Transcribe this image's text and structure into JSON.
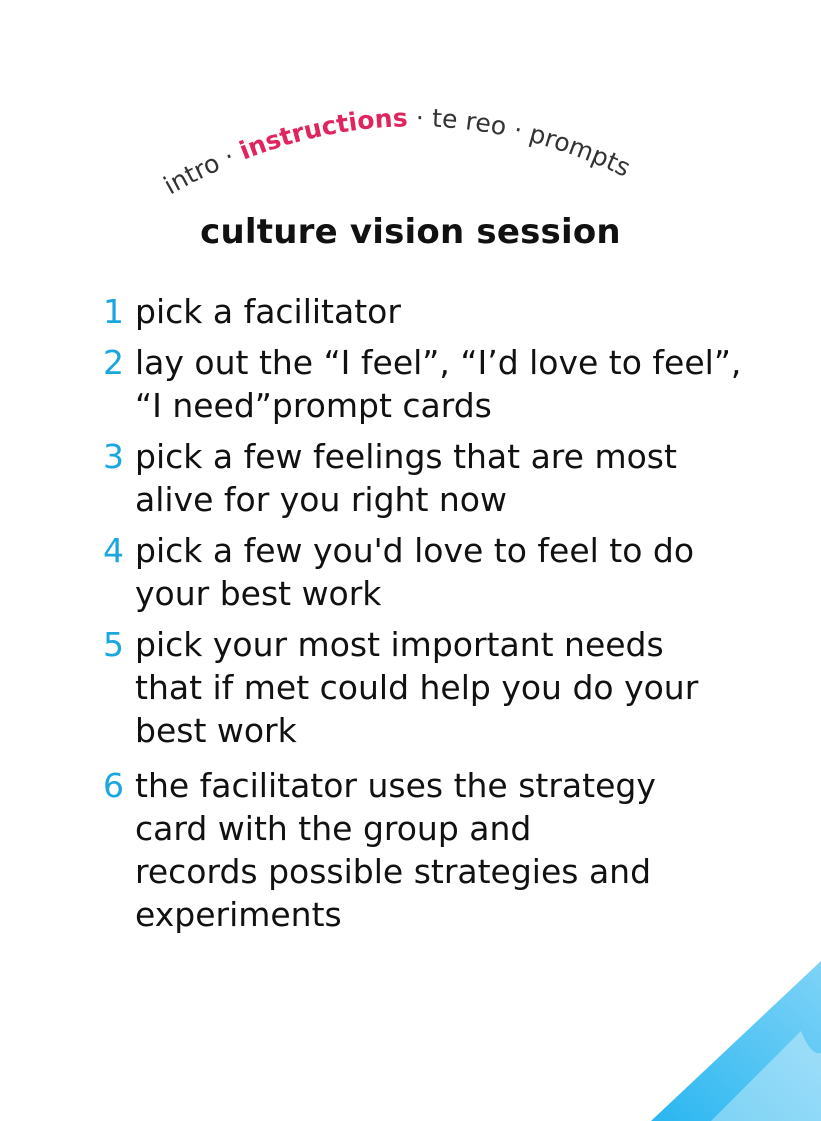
{
  "nav": {
    "items": [
      {
        "label": "intro",
        "active": false
      },
      {
        "label": "instructions",
        "active": true
      },
      {
        "label": "te reo",
        "active": false
      },
      {
        "label": "prompts",
        "active": false
      }
    ],
    "separator": "·"
  },
  "title": "culture vision session",
  "steps": [
    {
      "number": "1",
      "text": "pick a facilitator"
    },
    {
      "number": "2",
      "text": "lay out the “I feel”, “I’d love to feel”,\n“I need”prompt cards"
    },
    {
      "number": "3",
      "text": "pick a few feelings that are most\nalive for you right now"
    },
    {
      "number": "4",
      "text": "pick a few you'd love to feel to do\nyour best work"
    },
    {
      "number": "5",
      "text": "pick your most important needs\nthat if met could help you do your\nbest work"
    },
    {
      "number": "6",
      "text": "the facilitator uses the strategy\ncard with the group and\nrecords possible strategies and\nexperiments"
    }
  ],
  "colors": {
    "accent": "#e0245e",
    "number": "#1aa7e0",
    "text": "#111111",
    "corner": "#29b6f0"
  }
}
